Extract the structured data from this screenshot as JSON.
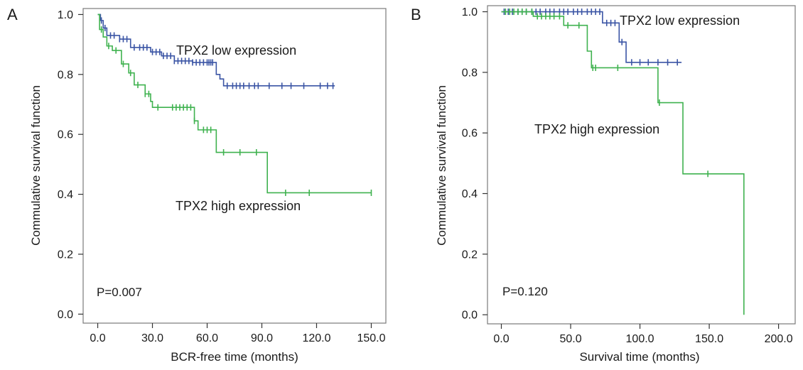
{
  "chart_data": [
    {
      "type": "line",
      "step": true,
      "panel": "A",
      "xlabel": "BCR-free time (months)",
      "ylabel": "Commulative survival function",
      "xlim": [
        -8,
        158
      ],
      "ylim": [
        -0.03,
        1.02
      ],
      "xticks": [
        0,
        30,
        60,
        90,
        120,
        150
      ],
      "xtick_labels": [
        "0.0",
        "30.0",
        "60.0",
        "90.0",
        "120.0",
        "150.0"
      ],
      "yticks": [
        0,
        0.2,
        0.4,
        0.6,
        0.8,
        1.0
      ],
      "ytick_labels": [
        "0.0",
        "0.2",
        "0.4",
        "0.6",
        "0.8",
        "1.0"
      ],
      "grid": false,
      "pvalue": "P=0.007",
      "series": [
        {
          "name": "TPX2 low expression",
          "color": "#3b55a5",
          "x": [
            0,
            1.5,
            3,
            5,
            12,
            18,
            29,
            35,
            42,
            52,
            60,
            65,
            67,
            69,
            130
          ],
          "y": [
            1.0,
            0.98,
            0.955,
            0.93,
            0.918,
            0.89,
            0.875,
            0.862,
            0.845,
            0.84,
            0.84,
            0.8,
            0.785,
            0.762,
            0.762
          ],
          "censor_x": [
            2,
            4,
            7,
            9,
            12,
            14,
            16,
            20,
            23,
            25,
            27,
            30,
            32,
            34,
            36,
            38,
            40,
            42,
            44,
            46,
            48,
            50,
            52,
            54,
            56,
            58,
            60,
            61,
            62,
            63,
            71,
            74,
            76,
            78,
            80,
            83,
            86,
            88,
            94,
            101,
            106,
            113,
            122,
            126,
            129
          ]
        },
        {
          "name": "TPX2 high expression",
          "color": "#3fb24f",
          "x": [
            0,
            1,
            3,
            5,
            8,
            13,
            17,
            20,
            26,
            29,
            30,
            37,
            53,
            55,
            65,
            93,
            150
          ],
          "y": [
            1.0,
            0.95,
            0.925,
            0.895,
            0.88,
            0.835,
            0.805,
            0.765,
            0.735,
            0.71,
            0.69,
            0.69,
            0.645,
            0.615,
            0.54,
            0.405,
            0.405
          ],
          "censor_x": [
            2,
            6,
            10,
            14,
            18,
            22,
            26,
            28,
            33,
            41,
            43,
            45,
            47,
            49,
            51,
            53,
            58,
            60,
            62,
            69,
            78,
            87,
            103,
            116,
            150
          ]
        }
      ]
    },
    {
      "type": "line",
      "step": true,
      "panel": "B",
      "xlabel": "Survival time (months)",
      "ylabel": "Commulative survival function",
      "xlim": [
        -10,
        212
      ],
      "ylim": [
        -0.03,
        1.02
      ],
      "xticks": [
        0,
        50,
        100,
        150,
        200
      ],
      "xtick_labels": [
        "0.0",
        "50.0",
        "100.0",
        "150.0",
        "200.0"
      ],
      "yticks": [
        0,
        0.2,
        0.4,
        0.6,
        0.8,
        1.0
      ],
      "ytick_labels": [
        "0.0",
        "0.2",
        "0.4",
        "0.6",
        "0.8",
        "1.0"
      ],
      "grid": false,
      "pvalue": "P=0.120",
      "series": [
        {
          "name": "TPX2 low expression",
          "color": "#3b55a5",
          "x": [
            0,
            73,
            80,
            85,
            90,
            130
          ],
          "y": [
            1.0,
            0.963,
            0.963,
            0.9,
            0.833,
            0.833
          ],
          "censor_x": [
            2,
            5,
            8,
            12,
            15,
            18,
            22,
            25,
            28,
            32,
            35,
            38,
            42,
            45,
            48,
            52,
            55,
            58,
            62,
            65,
            68,
            71,
            76,
            79,
            82,
            87,
            94,
            100,
            106,
            113,
            120,
            127
          ]
        },
        {
          "name": "TPX2 high expression",
          "color": "#3fb24f",
          "x": [
            0,
            23,
            45,
            62,
            65,
            113,
            131,
            175,
            175
          ],
          "y": [
            1.0,
            0.985,
            0.955,
            0.87,
            0.815,
            0.7,
            0.465,
            0.465,
            0.0
          ],
          "censor_x": [
            3,
            6,
            9,
            12,
            15,
            18,
            22,
            26,
            29,
            32,
            35,
            38,
            42,
            48,
            56,
            66,
            68,
            84,
            114,
            149
          ]
        }
      ]
    }
  ],
  "labels": {
    "panelA": {
      "letter": "A",
      "low_label": "TPX2 low expression",
      "high_label": "TPX2 high expression"
    },
    "panelB": {
      "letter": "B",
      "low_label": "TPX2 low expression",
      "high_label": "TPX2 high expression"
    }
  }
}
